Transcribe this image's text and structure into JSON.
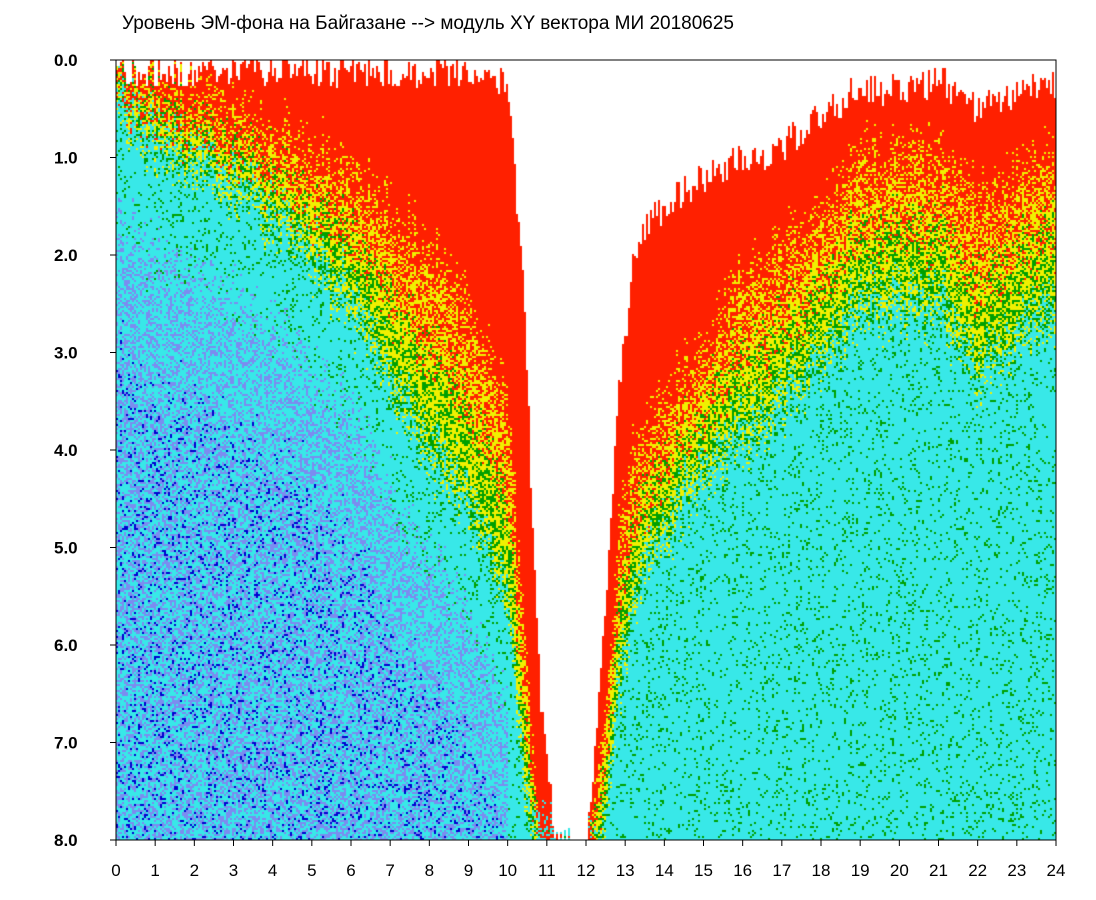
{
  "chart_data": {
    "type": "heatmap",
    "title": "Уровень ЭМ-фона на Байгазане  --> модуль XY вектора МИ  20180625",
    "xlabel": "",
    "ylabel": "",
    "xlim": [
      0,
      24
    ],
    "ylim": [
      8.0,
      0.0
    ],
    "x_ticks": [
      "0",
      "1",
      "2",
      "3",
      "4",
      "5",
      "6",
      "7",
      "8",
      "9",
      "10",
      "11",
      "12",
      "13",
      "14",
      "15",
      "16",
      "17",
      "18",
      "19",
      "20",
      "21",
      "22",
      "23",
      "24"
    ],
    "y_ticks": [
      "0.0",
      "1.0",
      "2.0",
      "3.0",
      "4.0",
      "5.0",
      "6.0",
      "7.0",
      "8.0"
    ],
    "colors": [
      "#0000d0",
      "#7b8cf0",
      "#38e8e8",
      "#00a000",
      "#f0f000",
      "#ff2000"
    ],
    "color_levels": [
      "low",
      "low-mid",
      "mid",
      "mid-high",
      "high",
      "very-high"
    ],
    "boundary_profile": {
      "hours": [
        0,
        1,
        2,
        3,
        4,
        5,
        6,
        7,
        8,
        9,
        10,
        10.4,
        10.8,
        11.2,
        11.6,
        12,
        12.4,
        12.8,
        13.2,
        13.6,
        14,
        15,
        16,
        17,
        18,
        19,
        20,
        21,
        22,
        23,
        24
      ],
      "red_upper": [
        0.1,
        0.1,
        0.1,
        0.1,
        0.1,
        0.1,
        0.1,
        0.1,
        0.1,
        0.1,
        0.2,
        2.5,
        6.5,
        8.0,
        8.0,
        8.0,
        6.0,
        3.5,
        2.0,
        1.6,
        1.5,
        1.2,
        1.0,
        0.9,
        0.5,
        0.3,
        0.3,
        0.2,
        0.5,
        0.3,
        0.2
      ],
      "yellow_upper": [
        0.1,
        0.2,
        0.3,
        0.6,
        0.8,
        1.0,
        1.2,
        1.6,
        2.0,
        2.6,
        3.5,
        6.0,
        8.0,
        8.0,
        8.0,
        8.0,
        7.0,
        5.0,
        4.0,
        3.8,
        3.5,
        3.0,
        2.2,
        2.0,
        1.5,
        1.0,
        1.0,
        1.0,
        1.5,
        1.2,
        1.0
      ],
      "green_upper": [
        0.4,
        0.8,
        1.0,
        1.3,
        1.6,
        2.0,
        2.5,
        3.2,
        4.0,
        4.5,
        5.5,
        7.5,
        8.0,
        8.0,
        8.0,
        8.0,
        8.0,
        6.5,
        5.5,
        5.0,
        4.8,
        4.2,
        3.8,
        3.5,
        3.0,
        2.5,
        2.5,
        2.5,
        3.2,
        2.8,
        2.5
      ]
    }
  }
}
